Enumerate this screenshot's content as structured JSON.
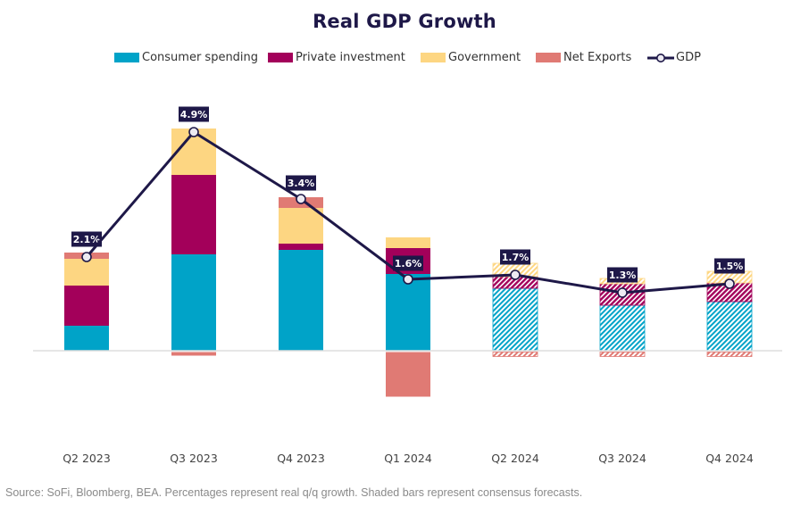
{
  "chart_data": {
    "type": "bar",
    "subtype": "stacked-bar-with-line",
    "title": "Real GDP Growth",
    "xlabel": "",
    "ylabel": "",
    "ylim": [
      -1.2,
      5.2
    ],
    "grid": false,
    "legend_position": "top-center",
    "categories": [
      "Q2 2023",
      "Q3 2023",
      "Q4 2023",
      "Q1 2024",
      "Q2 2024",
      "Q3 2024",
      "Q4 2024"
    ],
    "forecast": [
      false,
      false,
      false,
      false,
      true,
      true,
      true
    ],
    "series": [
      {
        "name": "Consumer spending",
        "kind": "bar",
        "color": "#00a3c8",
        "values": [
          0.56,
          2.16,
          2.26,
          1.72,
          1.4,
          1.02,
          1.1
        ]
      },
      {
        "name": "Private investment",
        "kind": "bar",
        "color": "#a3005a",
        "values": [
          0.9,
          1.78,
          0.14,
          0.58,
          0.26,
          0.48,
          0.42
        ]
      },
      {
        "name": "Government",
        "kind": "bar",
        "color": "#fdd682",
        "values": [
          0.6,
          1.04,
          0.8,
          0.24,
          0.3,
          0.12,
          0.26
        ]
      },
      {
        "name": "Net Exports",
        "kind": "bar",
        "color": "#e07a74",
        "values": [
          0.14,
          -0.08,
          0.24,
          -1.0,
          -0.1,
          -0.1,
          -0.1
        ]
      },
      {
        "name": "GDP",
        "kind": "line",
        "color": "#1e1848",
        "values": [
          2.1,
          4.9,
          3.4,
          1.6,
          1.7,
          1.3,
          1.5
        ],
        "labels": [
          "2.1%",
          "4.9%",
          "3.4%",
          "1.6%",
          "1.7%",
          "1.3%",
          "1.5%"
        ]
      }
    ],
    "annotations": [
      "Shaded bars represent consensus forecasts"
    ]
  },
  "legend": [
    {
      "label": "Consumer spending",
      "color": "#00a3c8"
    },
    {
      "label": "Private investment",
      "color": "#a3005a"
    },
    {
      "label": "Government",
      "color": "#fdd682"
    },
    {
      "label": "Net Exports",
      "color": "#e07a74"
    },
    {
      "label": "GDP",
      "color": "#1e1848",
      "marker": "line-circle"
    }
  ],
  "source": "Source: SoFi, Bloomberg, BEA. Percentages represent real q/q growth. Shaded bars represent consensus forecasts."
}
